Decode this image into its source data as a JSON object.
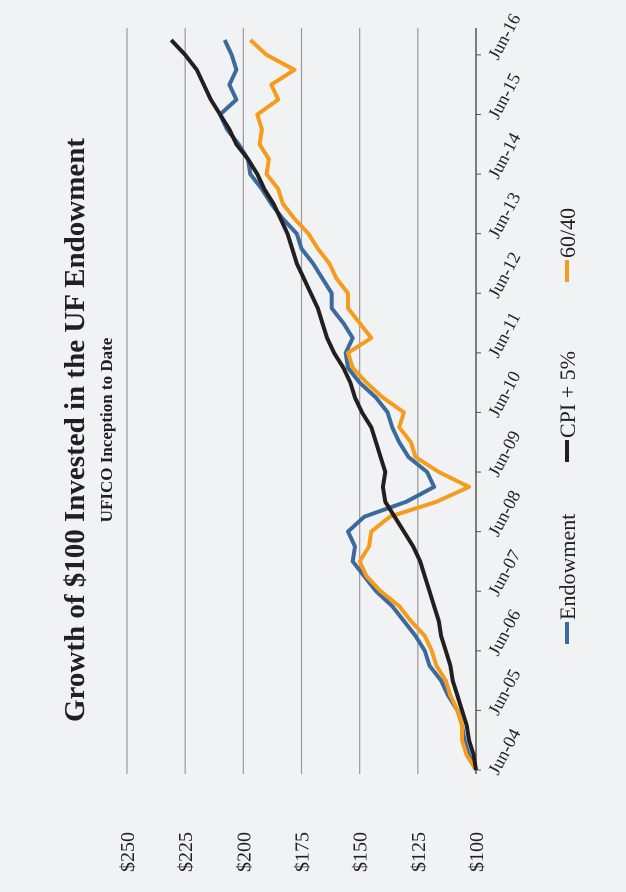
{
  "chart_data": {
    "type": "line",
    "title": "Growth of $100 Invested in the UF Endowment",
    "subtitle": "UFICO Inception to Date",
    "x": [
      "2004-06",
      "2004-09",
      "2004-12",
      "2005-03",
      "2005-06",
      "2005-09",
      "2005-12",
      "2006-03",
      "2006-06",
      "2006-09",
      "2006-12",
      "2007-03",
      "2007-06",
      "2007-09",
      "2007-12",
      "2008-03",
      "2008-06",
      "2008-09",
      "2008-12",
      "2009-03",
      "2009-06",
      "2009-09",
      "2009-12",
      "2010-03",
      "2010-06",
      "2010-09",
      "2010-12",
      "2011-03",
      "2011-06",
      "2011-09",
      "2011-12",
      "2012-03",
      "2012-06",
      "2012-09",
      "2012-12",
      "2013-03",
      "2013-06",
      "2013-09",
      "2013-12",
      "2014-03",
      "2014-06",
      "2014-09",
      "2014-12",
      "2015-03",
      "2015-06",
      "2015-09",
      "2015-12",
      "2016-03",
      "2016-06",
      "2016-09"
    ],
    "series": [
      {
        "name": "Endowment",
        "color": "#3b6a9c",
        "values": [
          100,
          103,
          105,
          106,
          108,
          112,
          115,
          120,
          122,
          126,
          131,
          136,
          143,
          148,
          153,
          152,
          155,
          148,
          130,
          118,
          121,
          129,
          133,
          136,
          138,
          143,
          150,
          155,
          156,
          153,
          157,
          162,
          162,
          166,
          170,
          175,
          177,
          183,
          188,
          192,
          197,
          198,
          202,
          207,
          210,
          203,
          206,
          203,
          205,
          208
        ]
      },
      {
        "name": "CPI + 5%",
        "color": "#231f20",
        "values": [
          100,
          101,
          103,
          104,
          106,
          108,
          110,
          111,
          113,
          115,
          116,
          118,
          120,
          122,
          124,
          127,
          131,
          135,
          139,
          140,
          139,
          141,
          143,
          145,
          149,
          152,
          154,
          157,
          161,
          164,
          166,
          168,
          171,
          174,
          177,
          179,
          181,
          184,
          187,
          191,
          194,
          198,
          203,
          206,
          210,
          214,
          217,
          220,
          225,
          231
        ]
      },
      {
        "name": "60/40",
        "color": "#f59c1d",
        "values": [
          100,
          104,
          106,
          106,
          108,
          111,
          113,
          117,
          119,
          122,
          128,
          133,
          141,
          147,
          150,
          146,
          145,
          137,
          117,
          103,
          116,
          126,
          128,
          133,
          131,
          140,
          147,
          153,
          155,
          145,
          150,
          155,
          155,
          160,
          163,
          168,
          172,
          178,
          183,
          185,
          190,
          189,
          193,
          192,
          194,
          185,
          188,
          178,
          190,
          197
        ]
      }
    ],
    "xlim": [
      "2004-06",
      "2016-09"
    ],
    "xticks": [
      {
        "value": "2004-06",
        "label": "Jun-04"
      },
      {
        "value": "2005-06",
        "label": "Jun-05"
      },
      {
        "value": "2006-06",
        "label": "Jun-06"
      },
      {
        "value": "2007-06",
        "label": "Jun-07"
      },
      {
        "value": "2008-06",
        "label": "Jun-08"
      },
      {
        "value": "2009-06",
        "label": "Jun-09"
      },
      {
        "value": "2010-06",
        "label": "Jun-10"
      },
      {
        "value": "2011-06",
        "label": "Jun-11"
      },
      {
        "value": "2012-06",
        "label": "Jun-12"
      },
      {
        "value": "2013-06",
        "label": "Jun-13"
      },
      {
        "value": "2014-06",
        "label": "Jun-14"
      },
      {
        "value": "2015-06",
        "label": "Jun-15"
      },
      {
        "value": "2016-06",
        "label": "Jun-16"
      }
    ],
    "ylim": [
      100,
      250
    ],
    "yticks": [
      {
        "value": 100,
        "label": "$100"
      },
      {
        "value": 125,
        "label": "$125"
      },
      {
        "value": 150,
        "label": "$150"
      },
      {
        "value": 175,
        "label": "$175"
      },
      {
        "value": 200,
        "label": "$200"
      },
      {
        "value": 225,
        "label": "$225"
      },
      {
        "value": 250,
        "label": "$250"
      }
    ],
    "grid": true,
    "legend": "bottom"
  }
}
